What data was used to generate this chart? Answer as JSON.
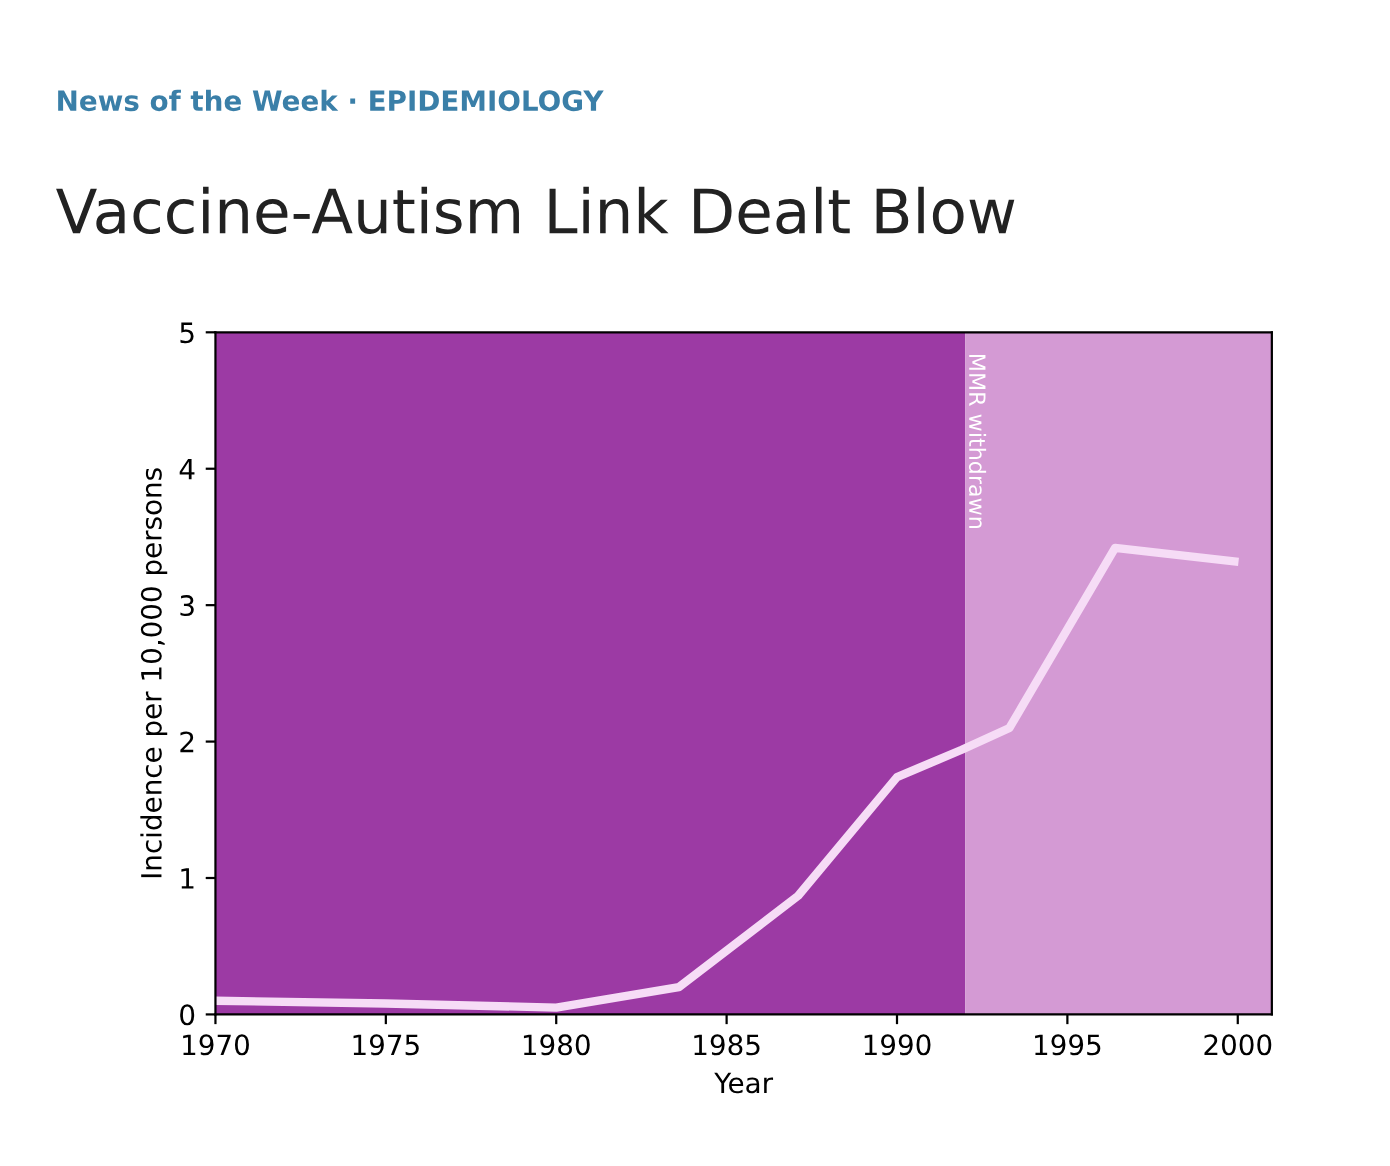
{
  "chart_data": {
    "type": "line",
    "title": "Vaccine-Autism Link Dealt Blow",
    "subtitle": "News of the Week · EPIDEMIOLOGY",
    "xlabel": "Year",
    "ylabel": "Incidence per 10,000 persons",
    "x": [
      1970,
      1975,
      1980,
      1983.6,
      1987.1,
      1990,
      1991.9,
      1993.3,
      1996.4,
      1999.9
    ],
    "series": [
      {
        "color": "#f6dcf6",
        "values": [
          0.1,
          0.08,
          0.05,
          0.2,
          0.87,
          1.74,
          1.94,
          2.1,
          3.42,
          3.32
        ]
      }
    ],
    "xlim": [
      1970,
      2001
    ],
    "xticks": [
      1970,
      1975,
      1980,
      1985,
      1990,
      1995,
      2000
    ],
    "ylim": [
      0,
      5
    ],
    "yticks": [
      0,
      1,
      2,
      3,
      4,
      5
    ],
    "bands": [
      {
        "axis": "x",
        "from": 1970,
        "to": 1992,
        "color": "#9c3aa4"
      },
      {
        "axis": "x",
        "from": 1992,
        "to": 2001,
        "color": "#d49ad4",
        "label": "MMR withdrawn"
      }
    ],
    "grid": false,
    "legend": false,
    "marker": "none",
    "line_style": "solid"
  }
}
